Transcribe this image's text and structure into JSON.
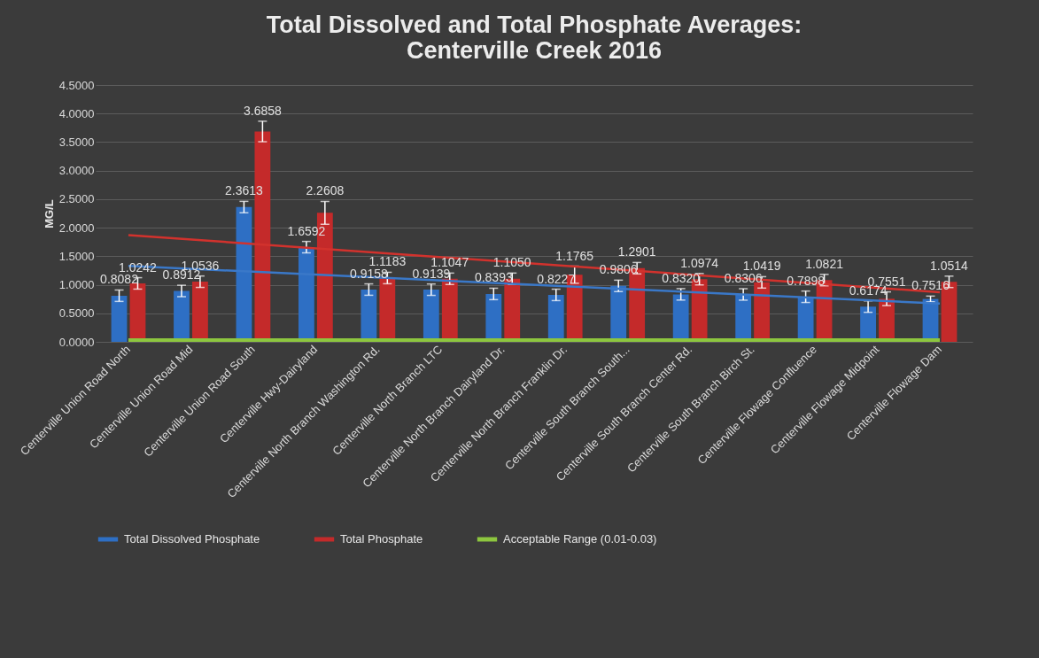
{
  "chart_data": {
    "type": "bar",
    "title": "Total Dissolved and Total Phosphate Averages:\nCenterville Creek 2016",
    "ylabel": "MG/L",
    "categories": [
      "Centerville Union Road North",
      "Centerville Union Road Mid",
      "Centerville Union Road South",
      "Centerville Hwy-Dairyland",
      "Centerville North Branch Washington Rd.",
      "Centerville North Branch LTC",
      "Centerville North Branch Dairyland Dr.",
      "Centerville North Branch Franklin Dr.",
      "Centerville South Branch South...",
      "Centerville South Branch Center Rd.",
      "Centerville South Branch Birch St.",
      "Centerville Flowage Confluence",
      "Centerville Flowage Midpoint",
      "Centerville Flowage Dam"
    ],
    "series": [
      {
        "name": "Total Dissolved Phosphate",
        "color": "#2e6fc4",
        "values": [
          0.8082,
          0.8912,
          2.3613,
          1.6592,
          0.9158,
          0.9139,
          0.8393,
          0.8227,
          0.9806,
          0.832,
          0.8306,
          0.7898,
          0.6174,
          0.7516
        ],
        "value_labels": [
          "0.8082",
          "0.8912",
          "2.3613",
          "1.6592",
          "0.9158",
          "0.9139",
          "0.8393",
          "0.8227",
          "0.9806",
          "0.8320",
          "0.8306",
          "0.7898",
          "0.6174",
          "0.7516"
        ],
        "errors": [
          0.1,
          0.1,
          0.1,
          0.1,
          0.1,
          0.1,
          0.1,
          0.1,
          0.1,
          0.1,
          0.1,
          0.1,
          0.1,
          0.05
        ]
      },
      {
        "name": "Total Phosphate",
        "color": "#c42a2a",
        "values": [
          1.0242,
          1.0536,
          3.6858,
          2.2608,
          1.1183,
          1.1047,
          1.105,
          1.1765,
          1.2901,
          1.0974,
          1.0419,
          1.0821,
          0.7551,
          1.0514
        ],
        "value_labels": [
          "1.0242",
          "1.0536",
          "3.6858",
          "2.2608",
          "1.1183",
          "1.1047",
          "1.1050",
          "1.1765",
          "1.2901",
          "1.0974",
          "1.0419",
          "1.0821",
          "0.7551",
          "1.0514"
        ],
        "errors": [
          0.1,
          0.1,
          0.18,
          0.2,
          0.1,
          0.1,
          0.1,
          0.15,
          0.1,
          0.1,
          0.1,
          0.1,
          0.12,
          0.1
        ]
      },
      {
        "name": "Acceptable Range (0.01-0.03)",
        "type": "line",
        "color": "#8dc63f",
        "values": [
          0.03,
          0.03,
          0.03,
          0.03,
          0.03,
          0.03,
          0.03,
          0.03,
          0.03,
          0.03,
          0.03,
          0.03,
          0.03,
          0.03
        ]
      },
      {
        "type": "line",
        "color": "#d2322d",
        "x": [
          "Centerville Union Road North",
          "Centerville Flowage Dam"
        ],
        "values": [
          1.87,
          0.87
        ]
      },
      {
        "type": "line",
        "color": "#3a78c8",
        "x": [
          "Centerville Union Road North",
          "Centerville Flowage Dam"
        ],
        "values": [
          1.33,
          0.67
        ]
      }
    ],
    "ylim": [
      0,
      4.5
    ],
    "yticks": [
      {
        "value": 0,
        "label": "0.0000"
      },
      {
        "value": 0.5,
        "label": "0.5000"
      },
      {
        "value": 1,
        "label": "1.0000"
      },
      {
        "value": 1.5,
        "label": "1.5000"
      },
      {
        "value": 2,
        "label": "2.0000"
      },
      {
        "value": 2.5,
        "label": "2.5000"
      },
      {
        "value": 3,
        "label": "3.0000"
      },
      {
        "value": 3.5,
        "label": "3.5000"
      },
      {
        "value": 4,
        "label": "4.0000"
      },
      {
        "value": 4.5,
        "label": "4.5000"
      }
    ],
    "grid": "y",
    "legend": "bottom"
  }
}
